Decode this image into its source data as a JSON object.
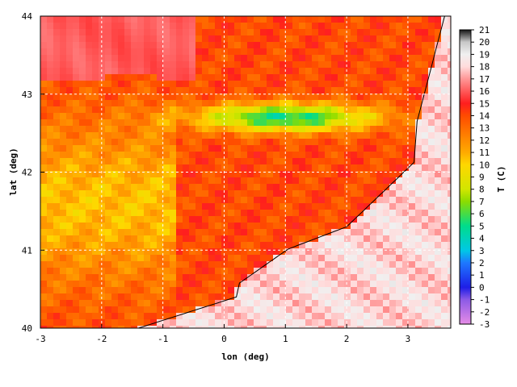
{
  "chart_data": {
    "type": "heatmap",
    "title": "",
    "xlabel": "lon (deg)",
    "ylabel": "lat (deg)",
    "xlim": [
      -3,
      3.7
    ],
    "ylim": [
      40,
      44
    ],
    "xticks": [
      "-3",
      "-2",
      "-1",
      "0",
      "1",
      "2",
      "3"
    ],
    "yticks": [
      "40",
      "41",
      "42",
      "43",
      "44"
    ],
    "grid": true,
    "colorbar": {
      "label": "T (C)",
      "min": -3,
      "max": 21,
      "ticks": [
        "-3",
        "-2",
        "-1",
        "0",
        "1",
        "2",
        "3",
        "4",
        "5",
        "6",
        "7",
        "8",
        "9",
        "10",
        "11",
        "12",
        "13",
        "14",
        "15",
        "16",
        "17",
        "18",
        "19",
        "20",
        "21"
      ],
      "stops": [
        {
          "value": -3,
          "color": "#e68ce6"
        },
        {
          "value": -1,
          "color": "#8c5ae6"
        },
        {
          "value": 0,
          "color": "#1e1ee6"
        },
        {
          "value": 2,
          "color": "#1e78ff"
        },
        {
          "value": 3,
          "color": "#00c8e6"
        },
        {
          "value": 5,
          "color": "#00dc8c"
        },
        {
          "value": 7,
          "color": "#8cdc00"
        },
        {
          "value": 8,
          "color": "#d2e600"
        },
        {
          "value": 10,
          "color": "#ffd700"
        },
        {
          "value": 11,
          "color": "#ffaa00"
        },
        {
          "value": 12,
          "color": "#ff8c00"
        },
        {
          "value": 14,
          "color": "#ff4b00"
        },
        {
          "value": 15,
          "color": "#ff1e1e"
        },
        {
          "value": 17,
          "color": "#ff9696"
        },
        {
          "value": 18,
          "color": "#ffdcdc"
        },
        {
          "value": 19,
          "color": "#f0f0f0"
        },
        {
          "value": 20,
          "color": "#c8c8c8"
        },
        {
          "value": 21,
          "color": "#141414"
        }
      ]
    },
    "field_summary": {
      "pyrenees_min_T": 5,
      "sea_east_T": 18,
      "sea_north_T": 16,
      "interior_T": 11
    }
  }
}
